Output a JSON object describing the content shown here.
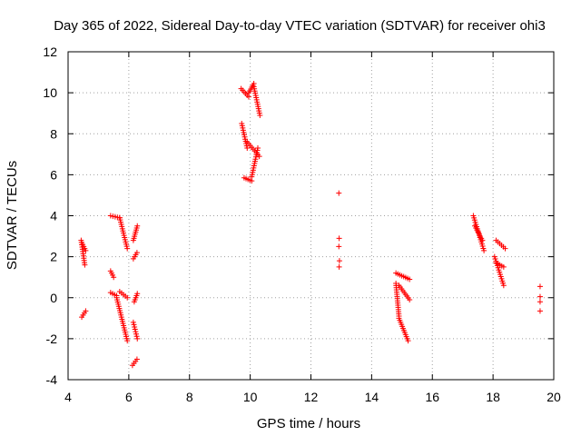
{
  "chart_data": {
    "type": "scatter",
    "title": "Day 365 of 2022, Sidereal Day-to-day VTEC variation (SDTVAR) for receiver ohi3",
    "xlabel": "GPS time / hours",
    "ylabel": "SDTVAR / TECUs",
    "xlim": [
      4,
      20
    ],
    "ylim": [
      -4,
      12
    ],
    "xticks": [
      4,
      6,
      8,
      10,
      12,
      14,
      16,
      18,
      20
    ],
    "yticks": [
      -4,
      -2,
      0,
      2,
      4,
      6,
      8,
      10,
      12
    ],
    "grid": true,
    "marker": "+",
    "color": "#ff0000",
    "segments": [
      {
        "x0": 4.43,
        "y0": 2.8,
        "x1": 4.55,
        "y1": 1.6
      },
      {
        "x0": 4.45,
        "y0": 2.7,
        "x1": 4.58,
        "y1": 2.3
      },
      {
        "x0": 4.45,
        "y0": -0.95,
        "x1": 4.58,
        "y1": -0.65
      },
      {
        "x0": 5.4,
        "y0": 1.3,
        "x1": 5.5,
        "y1": 1.0
      },
      {
        "x0": 5.4,
        "y0": 4.0,
        "x1": 5.7,
        "y1": 3.9
      },
      {
        "x0": 5.7,
        "y0": 3.9,
        "x1": 5.95,
        "y1": 2.4
      },
      {
        "x0": 5.4,
        "y0": 0.25,
        "x1": 5.6,
        "y1": 0.1
      },
      {
        "x0": 5.6,
        "y0": 0.0,
        "x1": 5.95,
        "y1": -2.1
      },
      {
        "x0": 5.7,
        "y0": 0.3,
        "x1": 5.95,
        "y1": 0.0
      },
      {
        "x0": 6.15,
        "y0": 2.8,
        "x1": 6.28,
        "y1": 3.5
      },
      {
        "x0": 6.15,
        "y0": 1.9,
        "x1": 6.27,
        "y1": 2.2
      },
      {
        "x0": 6.18,
        "y0": -0.2,
        "x1": 6.28,
        "y1": 0.2
      },
      {
        "x0": 6.15,
        "y0": -1.2,
        "x1": 6.28,
        "y1": -2.0
      },
      {
        "x0": 6.12,
        "y0": -3.3,
        "x1": 6.27,
        "y1": -3.0
      },
      {
        "x0": 9.7,
        "y0": 10.2,
        "x1": 9.95,
        "y1": 9.8
      },
      {
        "x0": 9.95,
        "y0": 10.0,
        "x1": 10.12,
        "y1": 10.45
      },
      {
        "x0": 10.12,
        "y0": 10.3,
        "x1": 10.32,
        "y1": 8.9
      },
      {
        "x0": 9.72,
        "y0": 8.5,
        "x1": 9.9,
        "y1": 7.3
      },
      {
        "x0": 9.9,
        "y0": 7.6,
        "x1": 10.3,
        "y1": 6.9
      },
      {
        "x0": 9.8,
        "y0": 5.85,
        "x1": 10.05,
        "y1": 5.7
      },
      {
        "x0": 10.05,
        "y0": 5.9,
        "x1": 10.25,
        "y1": 7.3
      },
      {
        "x0": 17.35,
        "y0": 4.0,
        "x1": 17.7,
        "y1": 2.3
      },
      {
        "x0": 17.4,
        "y0": 3.5,
        "x1": 17.65,
        "y1": 2.8
      },
      {
        "x0": 18.1,
        "y0": 2.8,
        "x1": 18.4,
        "y1": 2.4
      },
      {
        "x0": 18.05,
        "y0": 2.0,
        "x1": 18.35,
        "y1": 0.6
      },
      {
        "x0": 18.1,
        "y0": 1.7,
        "x1": 18.35,
        "y1": 1.5
      },
      {
        "x0": 14.8,
        "y0": 0.7,
        "x1": 14.9,
        "y1": -0.9
      },
      {
        "x0": 14.9,
        "y0": -1.0,
        "x1": 15.2,
        "y1": -2.1
      },
      {
        "x0": 14.8,
        "y0": 1.2,
        "x1": 15.25,
        "y1": 0.9
      },
      {
        "x0": 14.9,
        "y0": 0.6,
        "x1": 15.25,
        "y1": -0.1
      }
    ],
    "points": [
      {
        "x": 12.92,
        "y": 5.1
      },
      {
        "x": 12.93,
        "y": 2.9
      },
      {
        "x": 12.92,
        "y": 2.5
      },
      {
        "x": 12.94,
        "y": 1.8
      },
      {
        "x": 12.93,
        "y": 1.5
      },
      {
        "x": 19.55,
        "y": 0.55
      },
      {
        "x": 19.55,
        "y": 0.05
      },
      {
        "x": 19.55,
        "y": -0.2
      },
      {
        "x": 19.55,
        "y": -0.65
      }
    ]
  }
}
